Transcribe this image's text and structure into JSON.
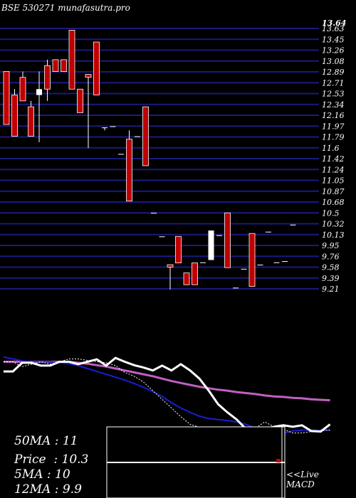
{
  "header": {
    "title": "BSE 530271 munafasutra.pro"
  },
  "chart_data": {
    "type": "candlestick",
    "title": "BSE 530271 munafasutra.pro",
    "y_ticks": [
      "13.63",
      "13.45",
      "13.26",
      "13.08",
      "12.89",
      "12.71",
      "12.53",
      "12.34",
      "12.16",
      "11.97",
      "11.79",
      "11.6",
      "11.42",
      "11.24",
      "11.05",
      "10.87",
      "10.68",
      "10.5",
      "10.32",
      "10.13",
      "9.95",
      "9.76",
      "9.58",
      "9.39",
      "9.21"
    ],
    "top_value": "13.64",
    "ylim": [
      9.21,
      13.63
    ],
    "grid": true,
    "candles": [
      {
        "open": 12.9,
        "close": 12.0,
        "high": 12.9,
        "low": 12.0
      },
      {
        "open": 12.5,
        "close": 11.8,
        "high": 12.6,
        "low": 11.8
      },
      {
        "open": 12.8,
        "close": 12.4,
        "high": 12.9,
        "low": 12.4
      },
      {
        "open": 12.3,
        "close": 11.8,
        "high": 12.4,
        "low": 11.8
      },
      {
        "open": 12.5,
        "close": 12.6,
        "high": 12.9,
        "low": 11.7
      },
      {
        "open": 13.0,
        "close": 12.6,
        "high": 13.1,
        "low": 12.4
      },
      {
        "open": 13.1,
        "close": 12.9,
        "high": 13.1,
        "low": 12.9
      },
      {
        "open": 13.1,
        "close": 12.9,
        "high": 13.1,
        "low": 12.9
      },
      {
        "open": 13.6,
        "close": 12.6,
        "high": 13.6,
        "low": 12.6
      },
      {
        "open": 12.6,
        "close": 12.2,
        "high": 12.6,
        "low": 12.2
      },
      {
        "open": 12.85,
        "close": 12.8,
        "high": 12.85,
        "low": 11.6
      },
      {
        "open": 13.4,
        "close": 12.5,
        "high": 13.4,
        "low": 12.5
      },
      {
        "open": 11.95,
        "close": 11.95,
        "high": 11.95,
        "low": 11.9
      },
      {
        "open": 11.97,
        "close": 11.97,
        "high": 11.97,
        "low": 11.97
      },
      {
        "open": 11.5,
        "close": 11.5,
        "high": 11.5,
        "low": 11.5
      },
      {
        "open": 11.75,
        "close": 10.7,
        "high": 11.9,
        "low": 10.7
      },
      {
        "open": 11.8,
        "close": 11.8,
        "high": 11.8,
        "low": 11.8
      },
      {
        "open": 12.3,
        "close": 11.3,
        "high": 12.3,
        "low": 11.3
      },
      {
        "open": 10.5,
        "close": 10.5,
        "high": 10.5,
        "low": 10.5
      },
      {
        "open": 10.1,
        "close": 10.1,
        "high": 10.1,
        "low": 10.1
      },
      {
        "open": 9.62,
        "close": 9.58,
        "high": 9.62,
        "low": 9.2
      },
      {
        "open": 10.1,
        "close": 9.65,
        "high": 10.1,
        "low": 9.65
      },
      {
        "open": 9.48,
        "close": 9.28,
        "high": 9.48,
        "low": 9.28
      },
      {
        "open": 9.65,
        "close": 9.28,
        "high": 9.65,
        "low": 9.28
      },
      {
        "open": 9.66,
        "close": 9.66,
        "high": 9.66,
        "low": 9.66
      },
      {
        "open": 9.7,
        "close": 10.2,
        "high": 10.2,
        "low": 9.7
      },
      {
        "open": 10.12,
        "close": 10.12,
        "high": 10.12,
        "low": 10.12
      },
      {
        "open": 10.5,
        "close": 9.57,
        "high": 10.5,
        "low": 9.57
      },
      {
        "open": 9.23,
        "close": 9.23,
        "high": 9.23,
        "low": 9.23
      },
      {
        "open": 9.55,
        "close": 9.55,
        "high": 9.55,
        "low": 9.55
      },
      {
        "open": 10.15,
        "close": 9.25,
        "high": 10.15,
        "low": 9.25
      },
      {
        "open": 9.62,
        "close": 9.62,
        "high": 9.62,
        "low": 9.62
      },
      {
        "open": 10.18,
        "close": 10.18,
        "high": 10.18,
        "low": 10.18
      },
      {
        "open": 9.66,
        "close": 9.66,
        "high": 9.66,
        "low": 9.66
      },
      {
        "open": 9.68,
        "close": 9.68,
        "high": 9.68,
        "low": 9.68
      },
      {
        "open": 10.3,
        "close": 10.3,
        "high": 10.3,
        "low": 10.3
      }
    ],
    "indicator_colors": {
      "price_line": "#ffffff",
      "ma_5": "#ffffff",
      "ma_12": "#1c1cd4",
      "ma_50": "#c060c0",
      "grid": "#1a1a80",
      "down_candle": "#c00000",
      "up_candle": "#ffffff"
    },
    "ma_50": [
      9.8,
      9.8,
      9.8,
      9.8,
      9.8,
      9.8,
      9.8,
      9.8,
      9.78,
      9.76,
      9.73,
      9.7,
      9.66,
      9.62,
      9.58,
      9.54,
      9.5,
      9.45,
      9.4,
      9.36,
      9.32,
      9.28,
      9.25,
      9.22,
      9.2,
      9.17,
      9.15,
      9.13,
      9.1,
      9.08,
      9.07,
      9.05,
      9.04,
      9.02,
      9.01,
      9.0
    ],
    "ma_12": [
      9.9,
      9.86,
      9.82,
      9.8,
      9.8,
      9.8,
      9.78,
      9.76,
      9.72,
      9.66,
      9.6,
      9.54,
      9.48,
      9.42,
      9.35,
      9.27,
      9.18,
      9.08,
      8.95,
      8.84,
      8.75,
      8.67,
      8.62,
      8.6,
      8.58,
      8.55,
      8.5,
      8.42,
      8.35,
      8.3,
      8.32,
      8.36,
      8.38,
      8.38,
      8.38,
      8.38
    ],
    "ma_5": [
      9.8,
      9.8,
      9.7,
      9.75,
      9.8,
      9.75,
      9.8,
      9.86,
      9.86,
      9.83,
      9.8,
      9.78,
      9.72,
      9.58,
      9.5,
      9.38,
      9.2,
      9.02,
      8.84,
      8.66,
      8.5,
      8.44,
      8.37,
      8.32,
      8.32,
      8.32,
      8.35,
      8.42,
      8.55,
      8.45,
      8.4,
      8.32,
      8.32,
      8.35,
      8.37,
      8.38
    ],
    "price_line": [
      9.6,
      9.6,
      9.78,
      9.78,
      9.72,
      9.72,
      9.8,
      9.8,
      9.75,
      9.8,
      9.85,
      9.72,
      9.88,
      9.8,
      9.73,
      9.68,
      9.62,
      9.72,
      9.62,
      9.75,
      9.62,
      9.45,
      9.2,
      8.92,
      8.75,
      8.6,
      8.4,
      8.32,
      8.4,
      8.45,
      8.48,
      8.45,
      8.48,
      8.36,
      8.35,
      8.5
    ],
    "stats": [
      {
        "label": "50MA",
        "value": "11"
      },
      {
        "label": "Price",
        "value": "10.3"
      },
      {
        "label": "5MA",
        "value": "10"
      },
      {
        "label": "12MA",
        "value": "9.9"
      }
    ],
    "live": {
      "line1": "<<Live",
      "line2": "MACD"
    }
  }
}
